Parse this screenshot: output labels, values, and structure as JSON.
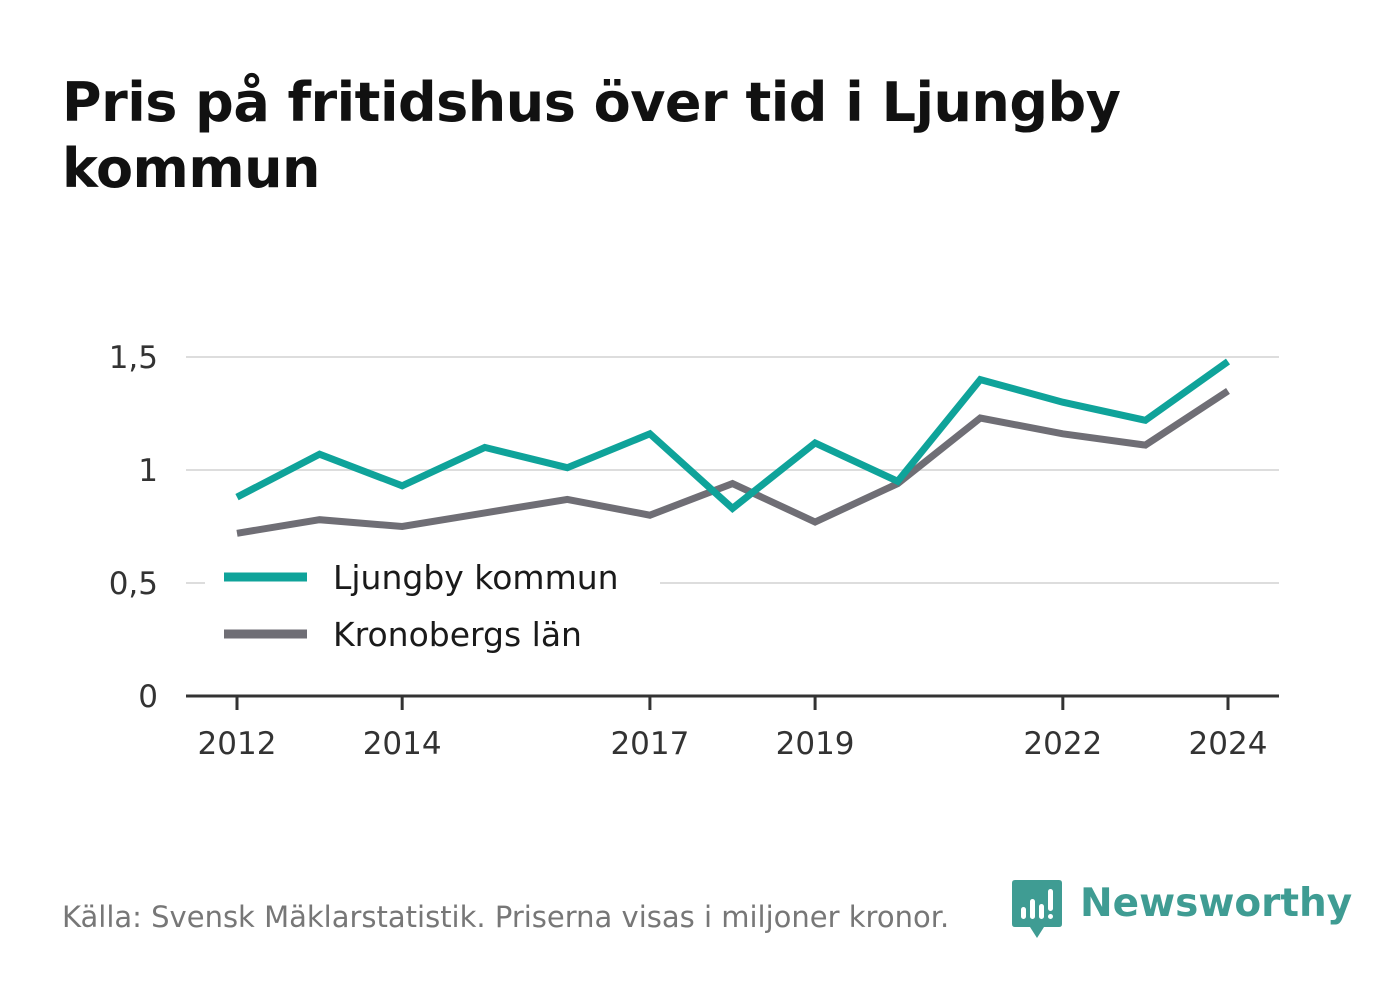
{
  "title": "Pris på fritidshus över tid i Ljungby kommun",
  "source": "Källa: Svensk Mäklarstatistik. Priserna visas i miljoner kronor.",
  "logo": {
    "text": "Newsworthy",
    "icon": "bar-chart-speech-bubble-icon",
    "color": "#3f9c93"
  },
  "colors": {
    "ljungby": "#0fa39a",
    "kronoberg": "#6f6e75",
    "grid": "#dddddd",
    "axis": "#333333"
  },
  "chart_data": {
    "type": "line",
    "x": [
      2012,
      2013,
      2014,
      2015,
      2016,
      2017,
      2018,
      2019,
      2020,
      2021,
      2022,
      2023,
      2024
    ],
    "x_tick_values": [
      2012,
      2014,
      2017,
      2019,
      2022,
      2024
    ],
    "x_tick_labels": [
      "2012",
      "2014",
      "2017",
      "2019",
      "2022",
      "2024"
    ],
    "y_tick_values": [
      0,
      0.5,
      1,
      1.5
    ],
    "y_tick_labels": [
      "0",
      "0,5",
      "1",
      "1,5"
    ],
    "ylim": [
      0,
      1.5
    ],
    "grid": "horizontal",
    "legend_position": "left",
    "series": [
      {
        "name": "Ljungby kommun",
        "color": "#0fa39a",
        "values": [
          0.88,
          1.07,
          0.93,
          1.1,
          1.01,
          1.16,
          0.83,
          1.12,
          0.95,
          1.4,
          1.3,
          1.22,
          1.48
        ]
      },
      {
        "name": "Kronobergs län",
        "color": "#6f6e75",
        "values": [
          0.72,
          0.78,
          0.75,
          0.81,
          0.87,
          0.8,
          0.94,
          0.77,
          0.94,
          1.23,
          1.16,
          1.11,
          1.35
        ]
      }
    ]
  }
}
